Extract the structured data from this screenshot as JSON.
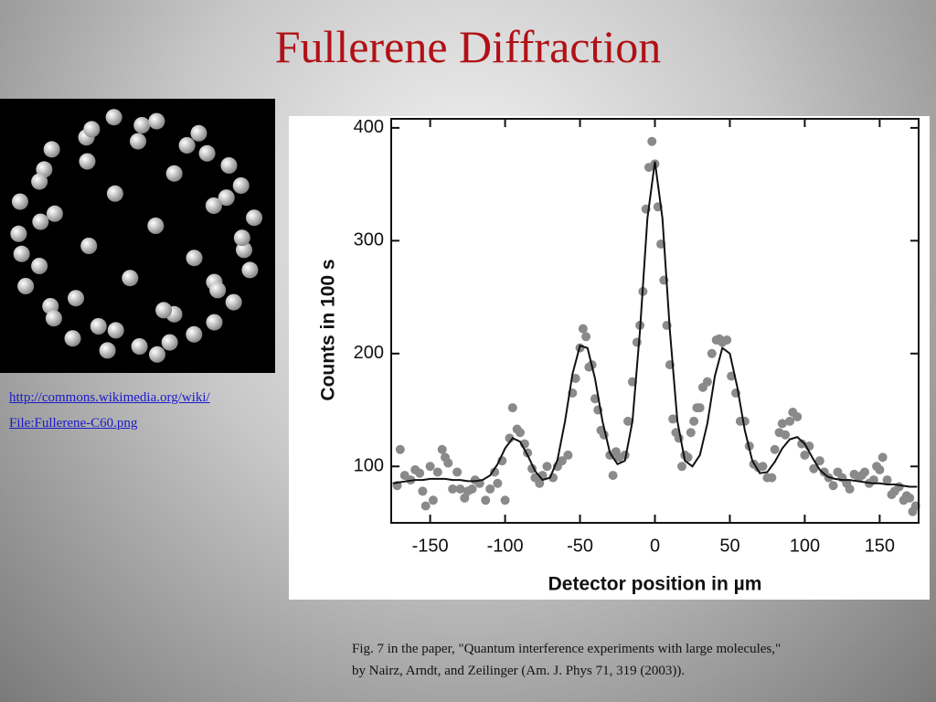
{
  "slide": {
    "title": "Fullerene Diffraction",
    "image_caption": [
      "http://commons.wikimedia.org/wiki/",
      "File:Fullerene-C60.png"
    ],
    "figure_caption": [
      "Fig. 7 in the paper, \"Quantum interference experiments with large molecules,\"",
      "by Nairz, Arndt, and Zeilinger (Am. J. Phys 71, 319 (2003))."
    ]
  },
  "chart_data": {
    "type": "scatter",
    "xlabel": "Detector position in µm",
    "ylabel": "Counts in 100 s",
    "xlim": [
      -176,
      176
    ],
    "ylim": [
      50,
      408
    ],
    "xticks": [
      -150,
      -100,
      -50,
      0,
      50,
      100,
      150
    ],
    "yticks": [
      100,
      200,
      300,
      400
    ],
    "series": [
      {
        "type": "scatter",
        "color": "#8a8a8a",
        "x": [
          -172,
          -170,
          -167,
          -163,
          -160,
          -157,
          -155,
          -153,
          -150,
          -148,
          -145,
          -142,
          -140,
          -138,
          -135,
          -132,
          -130,
          -127,
          -125,
          -122,
          -120,
          -117,
          -113,
          -110,
          -107,
          -105,
          -102,
          -100,
          -97,
          -95,
          -92,
          -90,
          -87,
          -85,
          -82,
          -80,
          -77,
          -75,
          -72,
          -68,
          -65,
          -62,
          -58,
          -55,
          -53,
          -50,
          -48,
          -46,
          -44,
          -42,
          -40,
          -38,
          -36,
          -34,
          -30,
          -28,
          -26,
          -24,
          -20,
          -18,
          -15,
          -12,
          -10,
          -8,
          -6,
          -4,
          -2,
          0,
          2,
          4,
          6,
          8,
          10,
          12,
          14,
          16,
          18,
          20,
          22,
          24,
          26,
          28,
          30,
          32,
          35,
          38,
          41,
          43,
          45,
          48,
          51,
          54,
          57,
          60,
          63,
          66,
          69,
          72,
          75,
          78,
          80,
          83,
          85,
          87,
          90,
          92,
          95,
          98,
          100,
          103,
          106,
          110,
          113,
          116,
          119,
          122,
          125,
          128,
          130,
          133,
          136,
          138,
          140,
          143,
          146,
          148,
          150,
          152,
          155,
          158,
          160,
          163,
          166,
          168,
          170,
          172,
          174
        ],
        "values": [
          83,
          115,
          92,
          88,
          97,
          94,
          78,
          65,
          100,
          70,
          95,
          115,
          108,
          103,
          80,
          95,
          80,
          72,
          78,
          80,
          88,
          85,
          70,
          80,
          95,
          85,
          105,
          70,
          125,
          152,
          133,
          130,
          120,
          112,
          98,
          90,
          85,
          92,
          100,
          90,
          100,
          105,
          110,
          165,
          178,
          205,
          222,
          215,
          188,
          190,
          160,
          150,
          132,
          128,
          110,
          92,
          113,
          108,
          110,
          140,
          175,
          210,
          225,
          255,
          328,
          365,
          388,
          368,
          330,
          297,
          265,
          225,
          190,
          142,
          130,
          125,
          100,
          110,
          108,
          130,
          140,
          152,
          152,
          170,
          175,
          200,
          212,
          213,
          210,
          212,
          180,
          165,
          140,
          140,
          118,
          102,
          99,
          100,
          90,
          90,
          115,
          130,
          138,
          128,
          140,
          148,
          144,
          120,
          110,
          118,
          98,
          105,
          95,
          90,
          83,
          95,
          90,
          85,
          80,
          93,
          90,
          92,
          95,
          85,
          88,
          100,
          97,
          108,
          88,
          75,
          78,
          82,
          70,
          74,
          72,
          60,
          65
        ]
      },
      {
        "type": "line",
        "color": "#111111",
        "x": [
          -175,
          -170,
          -165,
          -160,
          -155,
          -150,
          -145,
          -140,
          -135,
          -130,
          -125,
          -120,
          -115,
          -110,
          -105,
          -100,
          -95,
          -90,
          -85,
          -80,
          -75,
          -70,
          -65,
          -60,
          -55,
          -50,
          -45,
          -40,
          -35,
          -30,
          -25,
          -20,
          -15,
          -10,
          -5,
          0,
          5,
          10,
          15,
          20,
          25,
          30,
          35,
          40,
          45,
          50,
          55,
          60,
          65,
          70,
          75,
          80,
          85,
          90,
          95,
          100,
          105,
          110,
          115,
          120,
          125,
          130,
          135,
          140,
          145,
          150,
          155,
          160,
          165,
          170,
          175
        ],
        "values": [
          85,
          86,
          87,
          88,
          88,
          89,
          89,
          89,
          88,
          88,
          87,
          87,
          88,
          92,
          102,
          116,
          125,
          122,
          110,
          96,
          88,
          90,
          106,
          140,
          182,
          207,
          205,
          178,
          140,
          112,
          102,
          105,
          140,
          220,
          320,
          370,
          320,
          220,
          140,
          105,
          100,
          110,
          138,
          180,
          205,
          200,
          170,
          132,
          105,
          94,
          95,
          104,
          116,
          124,
          126,
          120,
          108,
          97,
          91,
          89,
          88,
          88,
          87,
          86,
          85,
          85,
          84,
          84,
          83,
          82,
          82
        ]
      }
    ]
  }
}
